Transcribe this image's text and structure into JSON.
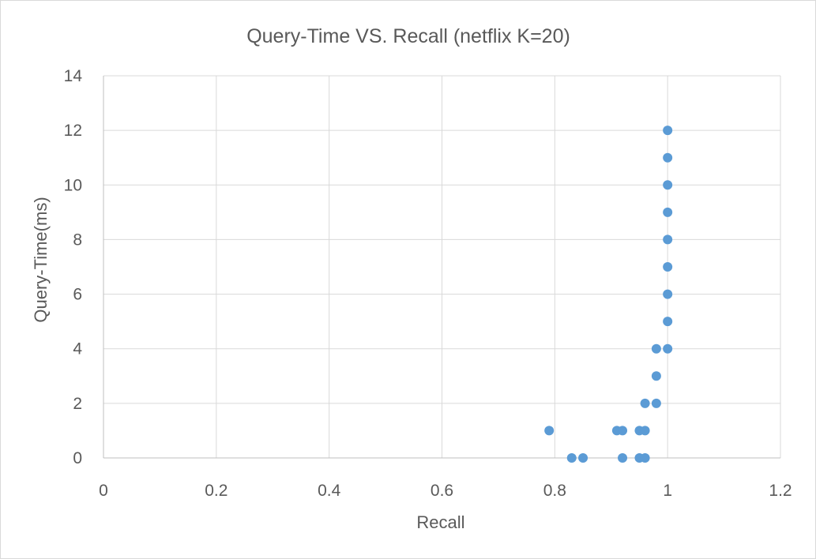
{
  "chart_data": {
    "type": "scatter",
    "title": "Query-Time VS. Recall (netflix K=20)",
    "xlabel": "Recall",
    "ylabel": "Query-Time(ms)",
    "xlim": [
      0,
      1.2
    ],
    "ylim": [
      0,
      14
    ],
    "x_ticks": [
      "0",
      "0.2",
      "0.4",
      "0.6",
      "0.8",
      "1",
      "1.2"
    ],
    "y_ticks": [
      "0",
      "2",
      "4",
      "6",
      "8",
      "10",
      "12",
      "14"
    ],
    "grid": true,
    "legend": "none",
    "marker_color": "#5b9bd5",
    "series": [
      {
        "points": [
          {
            "x": 0.79,
            "y": 1
          },
          {
            "x": 0.83,
            "y": 0
          },
          {
            "x": 0.85,
            "y": 0
          },
          {
            "x": 0.91,
            "y": 1
          },
          {
            "x": 0.92,
            "y": 1
          },
          {
            "x": 0.92,
            "y": 0
          },
          {
            "x": 0.95,
            "y": 1
          },
          {
            "x": 0.95,
            "y": 0
          },
          {
            "x": 0.96,
            "y": 1
          },
          {
            "x": 0.96,
            "y": 0
          },
          {
            "x": 0.96,
            "y": 2
          },
          {
            "x": 0.98,
            "y": 2
          },
          {
            "x": 0.98,
            "y": 3
          },
          {
            "x": 0.98,
            "y": 4
          },
          {
            "x": 1.0,
            "y": 4
          },
          {
            "x": 1.0,
            "y": 5
          },
          {
            "x": 1.0,
            "y": 6
          },
          {
            "x": 1.0,
            "y": 7
          },
          {
            "x": 1.0,
            "y": 8
          },
          {
            "x": 1.0,
            "y": 9
          },
          {
            "x": 1.0,
            "y": 10
          },
          {
            "x": 1.0,
            "y": 11
          },
          {
            "x": 1.0,
            "y": 12
          }
        ]
      }
    ]
  }
}
